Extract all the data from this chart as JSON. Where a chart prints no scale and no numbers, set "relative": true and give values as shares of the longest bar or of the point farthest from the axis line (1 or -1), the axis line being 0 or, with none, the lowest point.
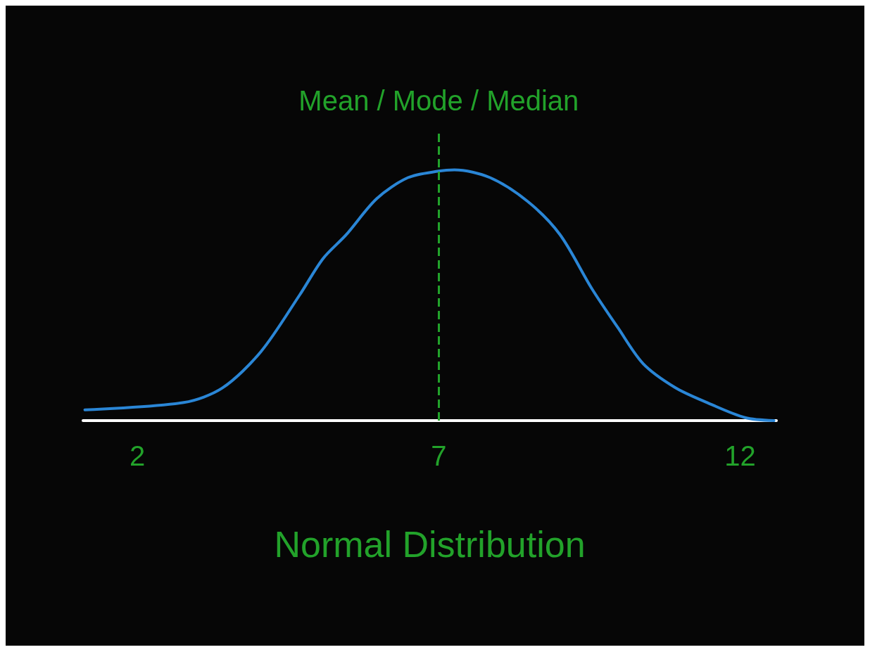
{
  "chart_data": {
    "type": "line",
    "xlabel": "Normal Distribution",
    "relative": true,
    "x": [
      1.13,
      2.77,
      3.41,
      4.05,
      4.69,
      5.08,
      5.46,
      5.97,
      6.49,
      7,
      7.26,
      7.85,
      8.48,
      9.01,
      9.54,
      9.97,
      10.39,
      10.92,
      11.45,
      12.08,
      12.56
    ],
    "series": [
      {
        "color": "#2a86d6",
        "values": [
          0.043,
          0.072,
          0.13,
          0.275,
          0.5,
          0.646,
          0.74,
          0.885,
          0.969,
          0.995,
          1,
          0.969,
          0.873,
          0.742,
          0.526,
          0.371,
          0.227,
          0.132,
          0.072,
          0.012,
          0
        ]
      }
    ],
    "xlim": [
      1.1,
      12.6
    ],
    "xticks": [
      2,
      7,
      12
    ],
    "ref_lines": [
      {
        "axis": "x",
        "value": 7,
        "label": "Mean / Mode / Median",
        "color": "#22a22a",
        "line_style": "dashed"
      }
    ],
    "grid": false,
    "marker": "none",
    "line_style": "solid"
  }
}
